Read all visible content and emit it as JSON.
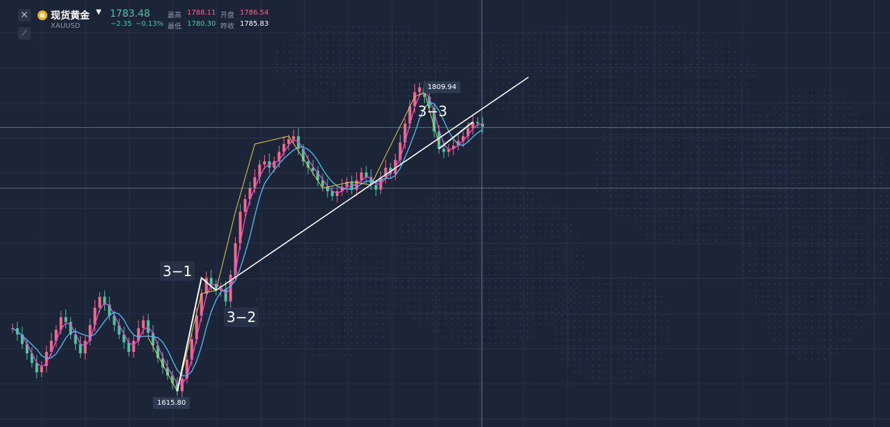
{
  "header": {
    "close_icon": "close-icon",
    "draw_icon": "drawing-tool-icon",
    "symbol_icon": "gold-coin-icon",
    "symbol_name": "现货黄金",
    "symbol_code": "XAUUSD",
    "last_price": "1783.48",
    "change": "−2.35",
    "change_pct": "−0.13%",
    "high_label": "最高",
    "high_value": "1788.11",
    "open_label": "开盘",
    "open_value": "1786.54",
    "low_label": "最低",
    "low_value": "1780.30",
    "prev_close_label": "昨收",
    "prev_close_value": "1785.83"
  },
  "colors": {
    "background": "#1c2538",
    "up": "#f06a8a",
    "down": "#4fc3a1",
    "ma_pink": "#e24bd2",
    "ma_blue": "#4fb6f0",
    "ma_yellow": "#e8d04a",
    "trend_line": "#ffffff"
  },
  "annotations": {
    "wave_3_1": "3−1",
    "wave_3_2": "3−2",
    "wave_3_3": "3−3",
    "low_price": "1615.80",
    "high_price": "1809.94"
  },
  "chart_data": {
    "type": "line",
    "title": "",
    "xlabel": "",
    "ylabel": "",
    "series": [
      {
        "values": [
          1656,
          1652,
          1646,
          1640,
          1634,
          1628,
          1632,
          1641,
          1648,
          1655,
          1663,
          1660,
          1652,
          1646,
          1640,
          1648,
          1658,
          1669,
          1676,
          1671,
          1664,
          1658,
          1652,
          1647,
          1641,
          1648,
          1656,
          1661,
          1653,
          1645,
          1637,
          1631,
          1626,
          1621,
          1616,
          1624,
          1636,
          1649,
          1664,
          1678,
          1688,
          1684,
          1680,
          1681,
          1673,
          1690,
          1710,
          1730,
          1738,
          1745,
          1752,
          1760,
          1762,
          1758,
          1762,
          1768,
          1773,
          1776,
          1778,
          1770,
          1762,
          1758,
          1756,
          1750,
          1746,
          1743,
          1740,
          1743,
          1746,
          1749,
          1744,
          1750,
          1755,
          1752,
          1747,
          1744,
          1752,
          1758,
          1754,
          1763,
          1774,
          1786,
          1797,
          1806,
          1809,
          1803,
          1796,
          1781,
          1770,
          1768,
          1770,
          1772,
          1775,
          1778,
          1783,
          1787,
          1786,
          1784
        ]
      }
    ],
    "trend_lines": [
      {
        "label": "white",
        "from": [
          1622,
          1622
        ],
        "to": [
          1702,
          1702
        ]
      }
    ],
    "ylim": [
      1595,
      1838
    ],
    "grid": true
  }
}
